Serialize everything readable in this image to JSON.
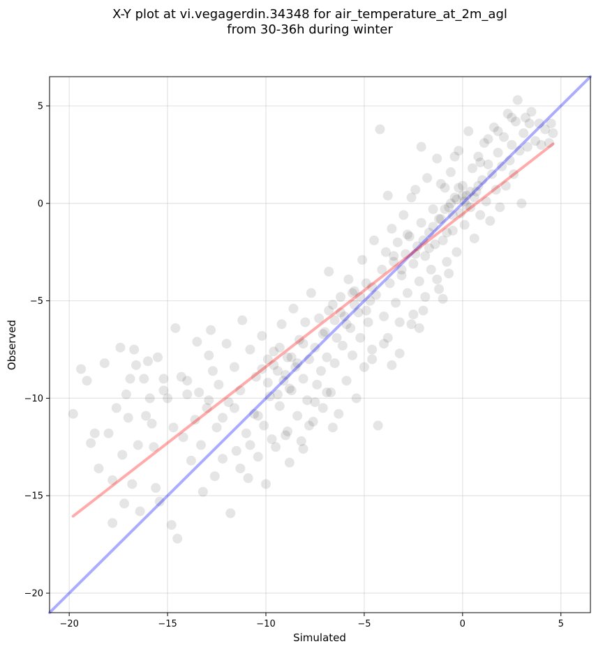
{
  "chart_data": {
    "type": "scatter",
    "title": "X-Y plot at vi.vegagerdin.34348 for air_temperature_at_2m_agl",
    "subtitle": "from 30-36h during winter",
    "xlabel": "Simulated",
    "ylabel": "Observed",
    "xlim": [
      -21,
      6.5
    ],
    "ylim": [
      -21,
      6.5
    ],
    "xticks": [
      -20,
      -15,
      -10,
      -5,
      0,
      5
    ],
    "yticks": [
      -20,
      -15,
      -10,
      -5,
      0,
      5
    ],
    "grid": true,
    "point_color": "#000000",
    "point_opacity": 0.1,
    "reference_line": {
      "name": "",
      "color": "#0000ff",
      "x": [
        -21,
        6.5
      ],
      "y": [
        -21,
        6.5
      ]
    },
    "regression_line": {
      "name": "",
      "color": "#ff0000",
      "x": [
        -19.8,
        4.6
      ],
      "y": [
        -16.05,
        3.05
      ]
    },
    "series": [
      {
        "name": "",
        "points": [
          [
            -19.8,
            -10.8
          ],
          [
            -19.4,
            -8.5
          ],
          [
            -19.1,
            -9.1
          ],
          [
            -18.9,
            -12.3
          ],
          [
            -18.7,
            -11.8
          ],
          [
            -18.5,
            -13.6
          ],
          [
            -18.2,
            -8.2
          ],
          [
            -18.0,
            -11.8
          ],
          [
            -17.8,
            -14.2
          ],
          [
            -17.8,
            -16.4
          ],
          [
            -17.6,
            -10.5
          ],
          [
            -17.4,
            -7.4
          ],
          [
            -17.3,
            -12.9
          ],
          [
            -17.2,
            -15.4
          ],
          [
            -17.0,
            -11.0
          ],
          [
            -16.9,
            -9.0
          ],
          [
            -16.8,
            -14.4
          ],
          [
            -16.7,
            -7.5
          ],
          [
            -16.6,
            -8.3
          ],
          [
            -16.5,
            -12.4
          ],
          [
            -16.4,
            -15.8
          ],
          [
            -16.2,
            -9.0
          ],
          [
            -16.0,
            -8.1
          ],
          [
            -15.9,
            -10.0
          ],
          [
            -15.8,
            -11.3
          ],
          [
            -15.6,
            -14.6
          ],
          [
            -15.5,
            -7.9
          ],
          [
            -15.4,
            -15.3
          ],
          [
            -15.2,
            -9.0
          ],
          [
            -15.0,
            -10.0
          ],
          [
            -14.8,
            -16.5
          ],
          [
            -14.7,
            -11.5
          ],
          [
            -14.6,
            -6.4
          ],
          [
            -14.5,
            -17.2
          ],
          [
            -14.3,
            -8.9
          ],
          [
            -14.2,
            -12.0
          ],
          [
            -14.0,
            -9.8
          ],
          [
            -13.8,
            -13.2
          ],
          [
            -13.6,
            -11.1
          ],
          [
            -13.5,
            -7.1
          ],
          [
            -13.3,
            -12.4
          ],
          [
            -13.2,
            -14.8
          ],
          [
            -13.0,
            -10.5
          ],
          [
            -12.9,
            -7.8
          ],
          [
            -12.8,
            -6.5
          ],
          [
            -12.6,
            -14.0
          ],
          [
            -12.5,
            -11.5
          ],
          [
            -12.4,
            -9.3
          ],
          [
            -12.2,
            -13.1
          ],
          [
            -12.0,
            -7.2
          ],
          [
            -11.9,
            -10.2
          ],
          [
            -11.8,
            -15.9
          ],
          [
            -11.6,
            -8.4
          ],
          [
            -11.5,
            -12.7
          ],
          [
            -11.3,
            -9.6
          ],
          [
            -11.2,
            -6.0
          ],
          [
            -11.0,
            -11.8
          ],
          [
            -10.9,
            -14.1
          ],
          [
            -10.8,
            -7.5
          ],
          [
            -10.6,
            -10.8
          ],
          [
            -10.5,
            -8.9
          ],
          [
            -10.4,
            -13.0
          ],
          [
            -10.2,
            -6.8
          ],
          [
            -10.1,
            -11.4
          ],
          [
            -10.0,
            -14.4
          ],
          [
            -9.9,
            -8.0
          ],
          [
            -9.8,
            -9.9
          ],
          [
            -9.6,
            -7.6
          ],
          [
            -9.5,
            -12.5
          ],
          [
            -9.4,
            -8.6
          ],
          [
            -9.3,
            -10.4
          ],
          [
            -9.2,
            -6.2
          ],
          [
            -9.1,
            -9.1
          ],
          [
            -9.0,
            -11.9
          ],
          [
            -8.9,
            -7.9
          ],
          [
            -8.8,
            -13.3
          ],
          [
            -8.7,
            -9.6
          ],
          [
            -8.6,
            -5.4
          ],
          [
            -8.5,
            -8.4
          ],
          [
            -8.4,
            -10.9
          ],
          [
            -8.3,
            -7.0
          ],
          [
            -8.2,
            -12.2
          ],
          [
            -8.1,
            -9.0
          ],
          [
            -8.0,
            -6.1
          ],
          [
            -7.9,
            -10.1
          ],
          [
            -7.8,
            -8.0
          ],
          [
            -7.7,
            -4.6
          ],
          [
            -7.6,
            -11.2
          ],
          [
            -7.5,
            -7.4
          ],
          [
            -7.4,
            -9.3
          ],
          [
            -7.3,
            -5.9
          ],
          [
            -7.2,
            -8.6
          ],
          [
            -7.1,
            -10.5
          ],
          [
            -7.0,
            -6.6
          ],
          [
            -6.9,
            -7.9
          ],
          [
            -6.8,
            -3.5
          ],
          [
            -6.7,
            -9.7
          ],
          [
            -6.6,
            -5.2
          ],
          [
            -6.5,
            -8.2
          ],
          [
            -6.4,
            -6.9
          ],
          [
            -6.3,
            -10.8
          ],
          [
            -6.2,
            -4.8
          ],
          [
            -6.1,
            -7.3
          ],
          [
            -6.0,
            -5.8
          ],
          [
            -5.9,
            -9.1
          ],
          [
            -5.8,
            -3.9
          ],
          [
            -5.7,
            -6.4
          ],
          [
            -5.6,
            -7.8
          ],
          [
            -5.5,
            -4.5
          ],
          [
            -5.4,
            -10.0
          ],
          [
            -5.3,
            -5.6
          ],
          [
            -5.2,
            -6.9
          ],
          [
            -5.1,
            -2.9
          ],
          [
            -5.0,
            -8.4
          ],
          [
            -4.9,
            -4.1
          ],
          [
            -4.8,
            -6.1
          ],
          [
            -4.7,
            -5.0
          ],
          [
            -4.6,
            -7.5
          ],
          [
            -4.5,
            -1.9
          ],
          [
            -4.4,
            -4.7
          ],
          [
            -4.3,
            -11.4
          ],
          [
            -4.2,
            3.8
          ],
          [
            -4.1,
            -3.4
          ],
          [
            -4.0,
            -5.8
          ],
          [
            -3.9,
            -2.5
          ],
          [
            -3.8,
            -6.9
          ],
          [
            -3.7,
            -4.1
          ],
          [
            -3.6,
            -1.3
          ],
          [
            -3.5,
            -3.0
          ],
          [
            -3.4,
            -5.1
          ],
          [
            -3.3,
            -2.0
          ],
          [
            -3.2,
            -7.7
          ],
          [
            -3.1,
            -3.7
          ],
          [
            -3.0,
            -0.6
          ],
          [
            -2.9,
            -2.6
          ],
          [
            -2.8,
            -4.6
          ],
          [
            -2.7,
            -1.7
          ],
          [
            -2.6,
            -6.2
          ],
          [
            -2.5,
            -3.1
          ],
          [
            -2.4,
            0.7
          ],
          [
            -2.3,
            -2.2
          ],
          [
            -2.2,
            -4.0
          ],
          [
            -2.1,
            -1.0
          ],
          [
            -2.0,
            -5.5
          ],
          [
            -1.9,
            -2.7
          ],
          [
            -1.8,
            1.3
          ],
          [
            -1.7,
            -1.5
          ],
          [
            -1.6,
            -3.4
          ],
          [
            -1.5,
            -0.3
          ],
          [
            -1.4,
            -2.1
          ],
          [
            -1.3,
            2.3
          ],
          [
            -1.2,
            -4.4
          ],
          [
            -1.1,
            -0.8
          ],
          [
            -1.0,
            -1.9
          ],
          [
            -0.9,
            0.8
          ],
          [
            -0.8,
            -3.0
          ],
          [
            -0.7,
            -0.2
          ],
          [
            -0.6,
            1.6
          ],
          [
            -0.5,
            -1.4
          ],
          [
            -0.4,
            0.3
          ],
          [
            -0.3,
            -2.5
          ],
          [
            -0.2,
            2.7
          ],
          [
            -0.1,
            -0.5
          ],
          [
            0.0,
            0.9
          ],
          [
            0.1,
            -1.1
          ],
          [
            0.2,
            0.4
          ],
          [
            0.3,
            3.7
          ],
          [
            0.4,
            -0.2
          ],
          [
            0.5,
            1.8
          ],
          [
            0.6,
            -1.8
          ],
          [
            0.7,
            0.6
          ],
          [
            0.8,
            2.4
          ],
          [
            0.9,
            -0.6
          ],
          [
            1.0,
            1.2
          ],
          [
            1.1,
            3.1
          ],
          [
            1.2,
            0.1
          ],
          [
            1.3,
            2.0
          ],
          [
            1.4,
            -0.9
          ],
          [
            1.5,
            1.5
          ],
          [
            1.6,
            3.9
          ],
          [
            1.7,
            0.7
          ],
          [
            1.8,
            2.6
          ],
          [
            1.9,
            -0.2
          ],
          [
            2.0,
            1.9
          ],
          [
            2.1,
            3.4
          ],
          [
            2.2,
            0.9
          ],
          [
            2.3,
            4.6
          ],
          [
            2.4,
            2.2
          ],
          [
            2.5,
            3.0
          ],
          [
            2.6,
            1.5
          ],
          [
            2.7,
            4.2
          ],
          [
            2.8,
            5.3
          ],
          [
            2.9,
            2.7
          ],
          [
            3.0,
            0.0
          ],
          [
            3.1,
            3.6
          ],
          [
            3.2,
            4.4
          ],
          [
            3.3,
            2.9
          ],
          [
            3.5,
            4.7
          ],
          [
            3.7,
            3.2
          ],
          [
            3.9,
            4.1
          ],
          [
            4.0,
            3.0
          ],
          [
            4.2,
            3.8
          ],
          [
            4.4,
            3.1
          ],
          [
            4.5,
            4.1
          ],
          [
            4.6,
            3.6
          ],
          [
            -9.6,
            -8.3
          ],
          [
            -9.3,
            -7.4
          ],
          [
            -9.0,
            -8.8
          ],
          [
            -8.7,
            -7.9
          ],
          [
            -8.4,
            -8.2
          ],
          [
            -8.1,
            -7.2
          ],
          [
            -9.9,
            -9.2
          ],
          [
            -10.2,
            -8.5
          ],
          [
            -8.8,
            -9.5
          ],
          [
            -9.4,
            -9.8
          ],
          [
            -6.2,
            -5.6
          ],
          [
            -5.9,
            -6.2
          ],
          [
            -5.5,
            -5.2
          ],
          [
            -5.2,
            -4.8
          ],
          [
            -4.9,
            -5.5
          ],
          [
            -5.6,
            -4.6
          ],
          [
            -6.5,
            -6.0
          ],
          [
            -4.6,
            -4.3
          ],
          [
            -7.1,
            -6.7
          ],
          [
            -6.8,
            -5.5
          ],
          [
            -1.2,
            -0.8
          ],
          [
            -0.9,
            -0.3
          ],
          [
            -0.6,
            0.0
          ],
          [
            -0.3,
            0.2
          ],
          [
            0.0,
            0.4
          ],
          [
            0.2,
            -0.1
          ],
          [
            0.4,
            0.6
          ],
          [
            -0.5,
            -0.6
          ],
          [
            -1.5,
            -1.2
          ],
          [
            0.6,
            0.3
          ],
          [
            -0.2,
            0.8
          ],
          [
            0.1,
            0.1
          ],
          [
            -0.8,
            -1.5
          ],
          [
            0.8,
            0.9
          ],
          [
            -2.0,
            -1.9
          ],
          [
            -1.7,
            -2.3
          ],
          [
            -2.4,
            -2.6
          ],
          [
            -3.1,
            -3.4
          ],
          [
            -3.5,
            -2.7
          ],
          [
            -2.8,
            -1.6
          ],
          [
            -12.9,
            -10.1
          ],
          [
            -13.4,
            -9.7
          ],
          [
            -12.2,
            -11.0
          ],
          [
            -11.6,
            -10.5
          ],
          [
            -14.0,
            -9.1
          ],
          [
            -15.2,
            -9.6
          ],
          [
            -16.1,
            -10.9
          ],
          [
            -17.1,
            -9.8
          ],
          [
            -15.7,
            -12.5
          ],
          [
            -12.7,
            -8.6
          ],
          [
            -7.5,
            -10.2
          ],
          [
            -6.9,
            -9.7
          ],
          [
            -7.8,
            -11.4
          ],
          [
            -8.1,
            -12.6
          ],
          [
            -6.6,
            -11.5
          ],
          [
            -10.8,
            -12.4
          ],
          [
            -11.3,
            -13.6
          ],
          [
            -9.7,
            -12.1
          ],
          [
            -8.9,
            -11.7
          ],
          [
            -10.4,
            -10.9
          ],
          [
            1.3,
            3.3
          ],
          [
            1.8,
            3.7
          ],
          [
            2.5,
            4.4
          ],
          [
            3.4,
            4.1
          ],
          [
            0.9,
            2.1
          ],
          [
            -0.4,
            2.4
          ],
          [
            -1.1,
            1.0
          ],
          [
            -2.6,
            0.3
          ],
          [
            -3.8,
            0.4
          ],
          [
            -2.1,
            2.9
          ],
          [
            -3.2,
            -6.1
          ],
          [
            -2.5,
            -5.7
          ],
          [
            -1.9,
            -4.8
          ],
          [
            -1.3,
            -3.9
          ],
          [
            -0.7,
            -3.6
          ],
          [
            -4.0,
            -7.2
          ],
          [
            -4.6,
            -8.0
          ],
          [
            -3.6,
            -8.3
          ],
          [
            -2.2,
            -6.4
          ],
          [
            -1.0,
            -4.9
          ]
        ]
      }
    ]
  }
}
